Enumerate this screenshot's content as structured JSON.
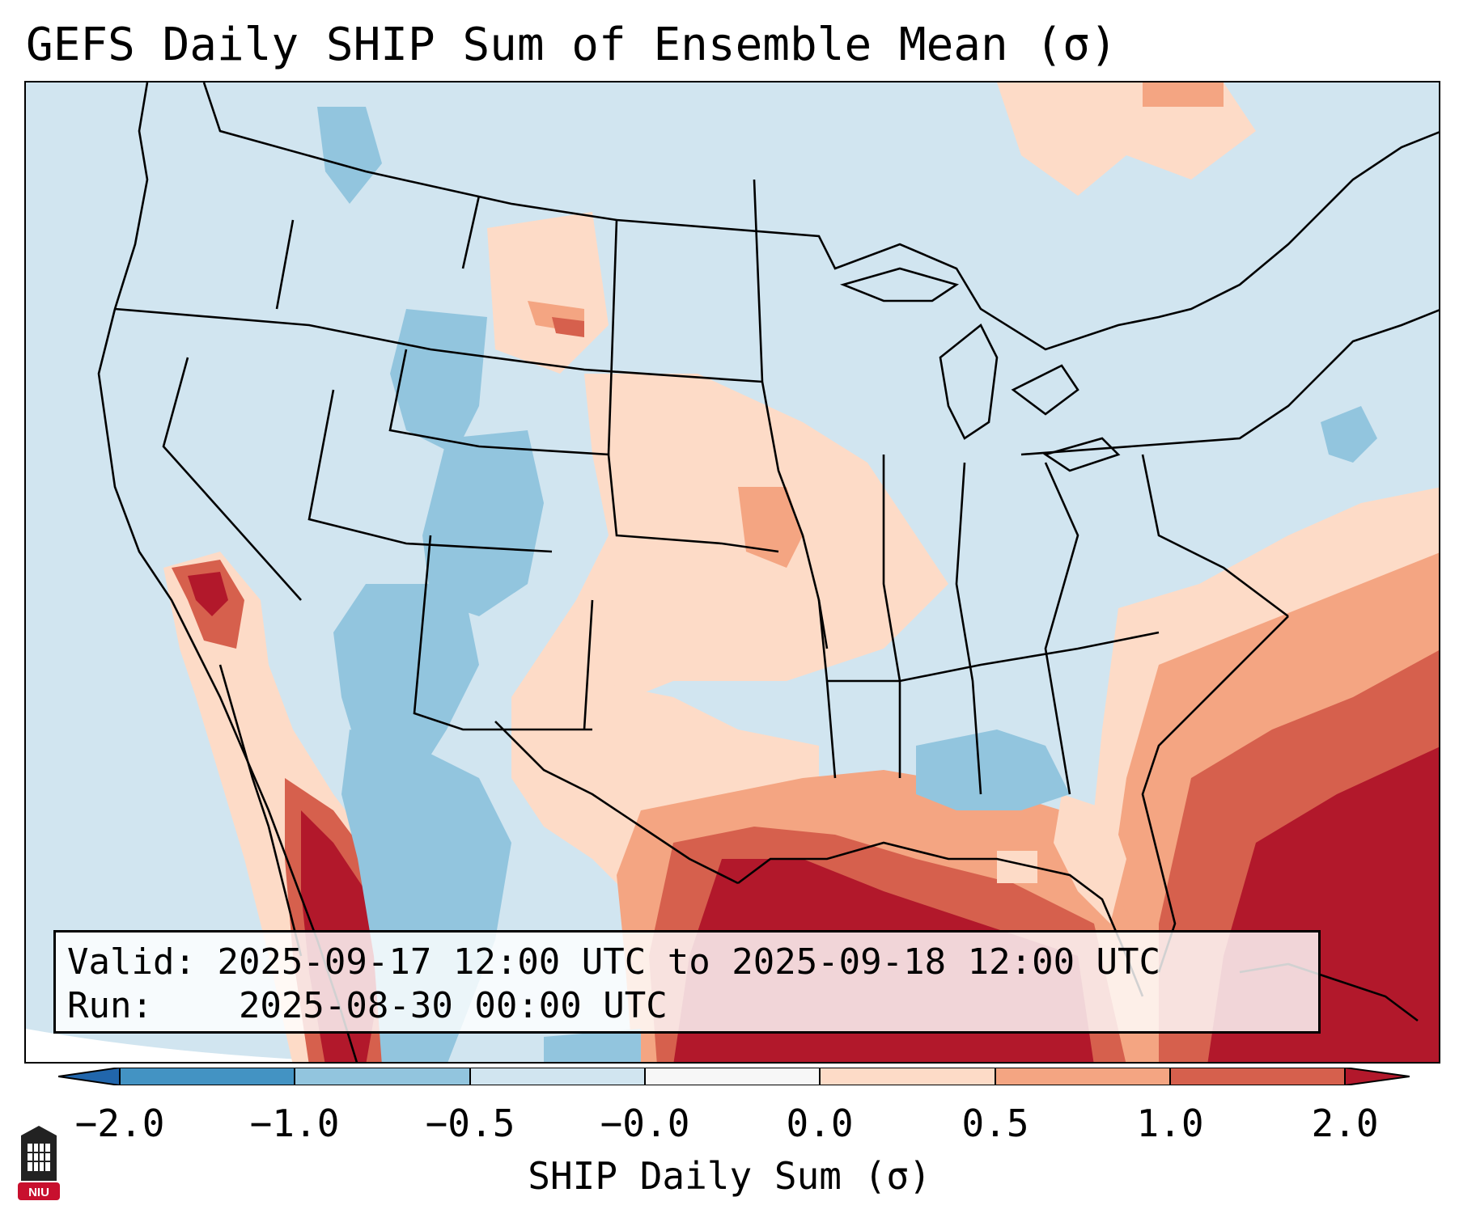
{
  "title": "GEFS Daily SHIP Sum of Ensemble Mean (σ)",
  "info": {
    "valid_label": "Valid:",
    "valid_value": "2025-09-17 12:00 UTC to 2025-09-18 12:00 UTC",
    "run_label": "Run:",
    "run_value": "2025-08-30 00:00 UTC"
  },
  "colorbar": {
    "label": "SHIP Daily Sum (σ)",
    "ticks": [
      "−2.0",
      "−1.0",
      "−0.5",
      "−0.0",
      "0.0",
      "0.5",
      "1.0",
      "2.0"
    ],
    "colors": [
      "#4393c3",
      "#92c5de",
      "#d1e5f0",
      "#f7f7f7",
      "#fddbc7",
      "#f4a582",
      "#d6604d",
      "#b2182b"
    ],
    "extend_low_color": "#2166ac",
    "extend_high_color": "#b2182b"
  },
  "logo": {
    "text": "NIU",
    "icon": "niu-logo-icon",
    "color": "#c8102e"
  },
  "map": {
    "state_line_color": "#000000",
    "ocean_color": "#d1e5f0"
  }
}
